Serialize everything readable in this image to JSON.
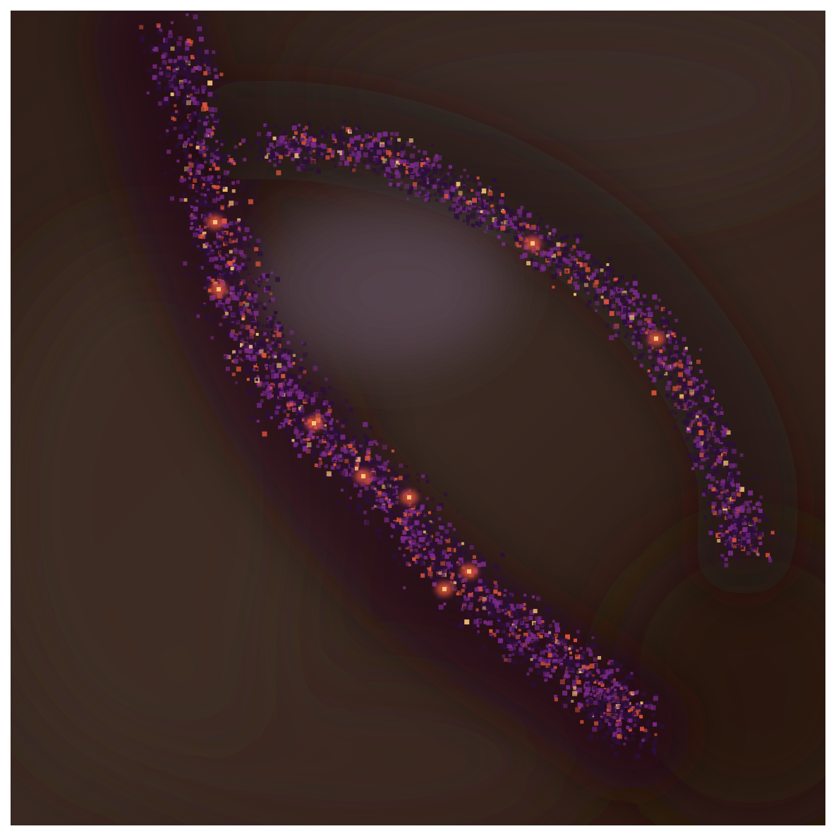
{
  "image": {
    "subject": "galaxy",
    "palette": {
      "background": "#34251d",
      "background_dark": "#2a1a12",
      "core_glow": "#4a3a40",
      "arm_base": "#2c0f3a",
      "arm_mid": "#7a2a8a",
      "arm_hot": "#e0553a",
      "arm_peak": "#f6c27a"
    }
  }
}
